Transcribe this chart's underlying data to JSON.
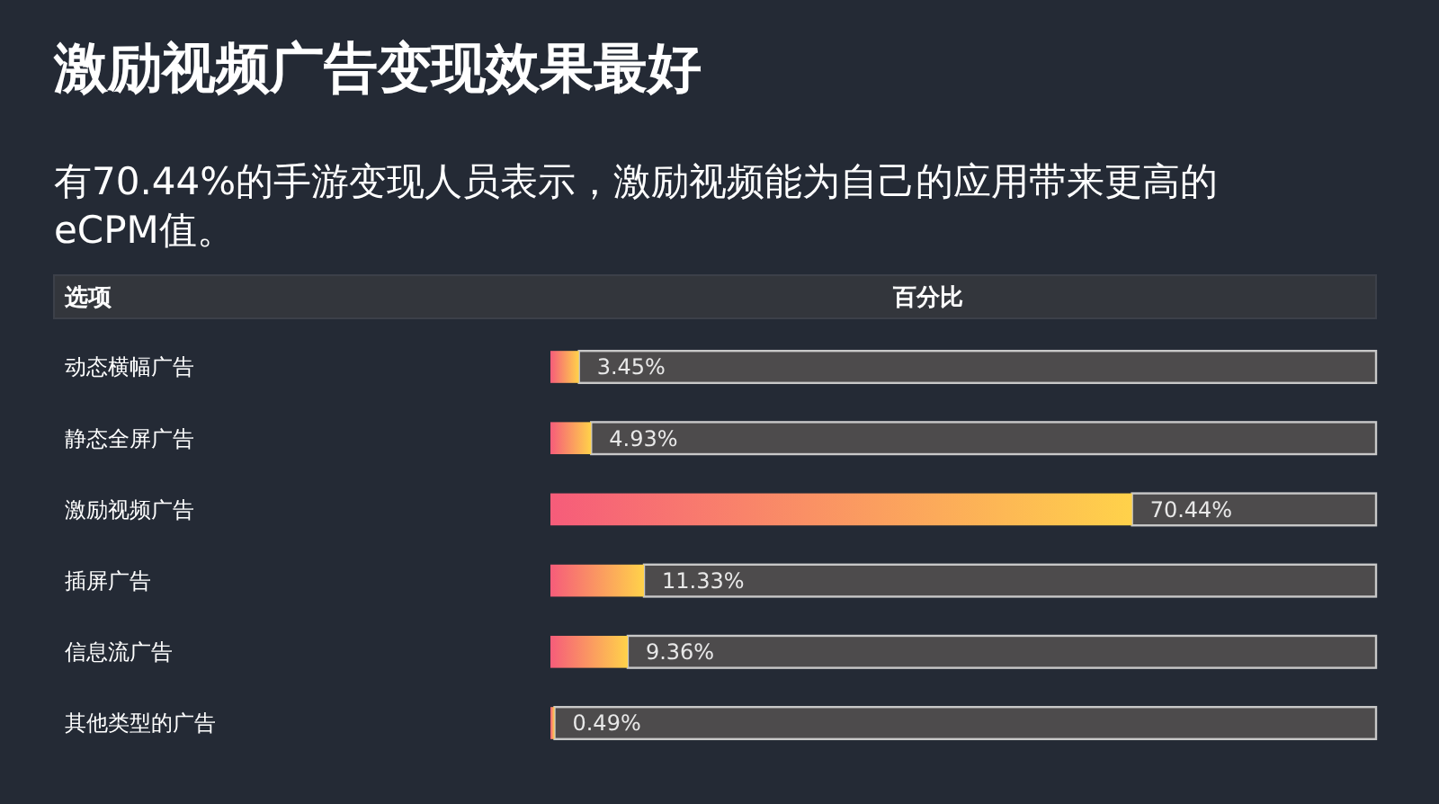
{
  "chart_data": {
    "type": "bar",
    "orientation": "horizontal",
    "title": "激励视频广告变现效果最好",
    "subtitle": "有70.44%的手游变现人员表示，激励视频能为自己的应用带来更高的eCPM值。",
    "ylabel": "选项",
    "xlabel": "百分比",
    "categories": [
      "动态横幅广告",
      "静态全屏广告",
      "激励视频广告",
      "插屏广告",
      "信息流广告",
      "其他类型的广告"
    ],
    "values": [
      3.45,
      4.93,
      70.44,
      11.33,
      9.36,
      0.49
    ],
    "value_labels": [
      "3.45%",
      "4.93%",
      "70.44%",
      "11.33%",
      "9.36%",
      "0.49%"
    ],
    "color": "#f65c7a",
    "xlim": [
      0,
      100
    ]
  }
}
